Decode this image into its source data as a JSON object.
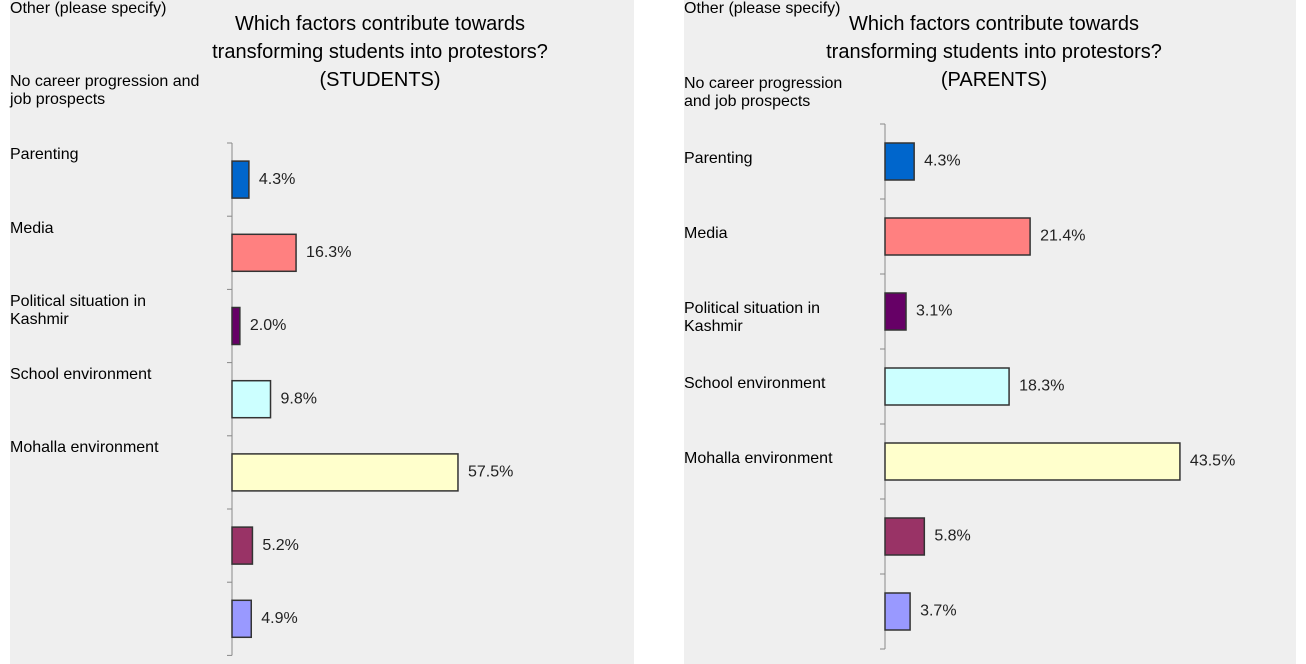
{
  "chart_data": [
    {
      "type": "bar",
      "orientation": "horizontal",
      "title": "Which factors contribute towards transforming students into protestors? (STUDENTS)",
      "categories": [
        "Other (please specify)",
        "No career progression and job prospects",
        "Parenting",
        "Media",
        "Political situation in Kashmir",
        "School environment",
        "Mohalla environment"
      ],
      "values": [
        4.3,
        16.3,
        2.0,
        9.8,
        57.5,
        5.2,
        4.9
      ],
      "value_labels": [
        "4.3%",
        "16.3%",
        "2.0%",
        "9.8%",
        "57.5%",
        "5.2%",
        "4.9%"
      ],
      "colors": [
        "#0066cc",
        "#ff8080",
        "#660066",
        "#ccffff",
        "#ffffcc",
        "#993366",
        "#9999ff"
      ]
    },
    {
      "type": "bar",
      "orientation": "horizontal",
      "title": "Which factors contribute towards transforming students into protestors? (PARENTS)",
      "categories": [
        "Other (please specify)",
        "No career progression and job prospects",
        "Parenting",
        "Media",
        "Political situation in Kashmir",
        "School environment",
        "Mohalla environment"
      ],
      "values": [
        4.3,
        21.4,
        3.1,
        18.3,
        43.5,
        5.8,
        3.7
      ],
      "value_labels": [
        "4.3%",
        "21.4%",
        "3.1%",
        "18.3%",
        "43.5%",
        "5.8%",
        "3.7%"
      ],
      "colors": [
        "#0066cc",
        "#ff8080",
        "#660066",
        "#ccffff",
        "#ffffcc",
        "#993366",
        "#9999ff"
      ]
    }
  ]
}
